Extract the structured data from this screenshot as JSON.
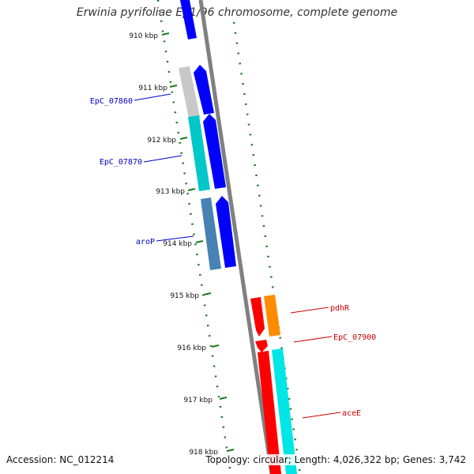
{
  "title": "Erwinia pyrifoliae Ep1/96 chromosome, complete genome",
  "kbp_ticks": [
    "910 kbp",
    "911 kbp",
    "912 kbp",
    "913 kbp",
    "914 kbp",
    "915 kbp",
    "916 kbp",
    "917 kbp",
    "918 kbp"
  ],
  "gene_labels": [
    {
      "text": "EpC_07860",
      "strand": "reverse",
      "color": "#0000cc"
    },
    {
      "text": "EpC_07870",
      "strand": "reverse",
      "color": "#0000cc"
    },
    {
      "text": "aroP",
      "strand": "reverse",
      "color": "#0000cc"
    },
    {
      "text": "pdhR",
      "strand": "forward",
      "color": "#cc0000"
    },
    {
      "text": "EpC_07900",
      "strand": "forward",
      "color": "#cc0000"
    },
    {
      "text": "aceE",
      "strand": "forward",
      "color": "#cc0000"
    }
  ],
  "colors": {
    "forward_cds": "#ff0000",
    "reverse_cds": "#0000ff",
    "backbone": "#808080",
    "gc_ticks": "#1a7a1a",
    "orange_feature": "#ff8c00",
    "cyan_feature": "#00e5e5",
    "teal_feature": "#00c8c8",
    "steel_feature": "#4682b4",
    "gray_feature": "#c8c8c8"
  },
  "footer": {
    "accession": "Accession: NC_012214",
    "summary": "Topology: circular; Length: 4,026,322 bp; Genes: 3,742"
  }
}
